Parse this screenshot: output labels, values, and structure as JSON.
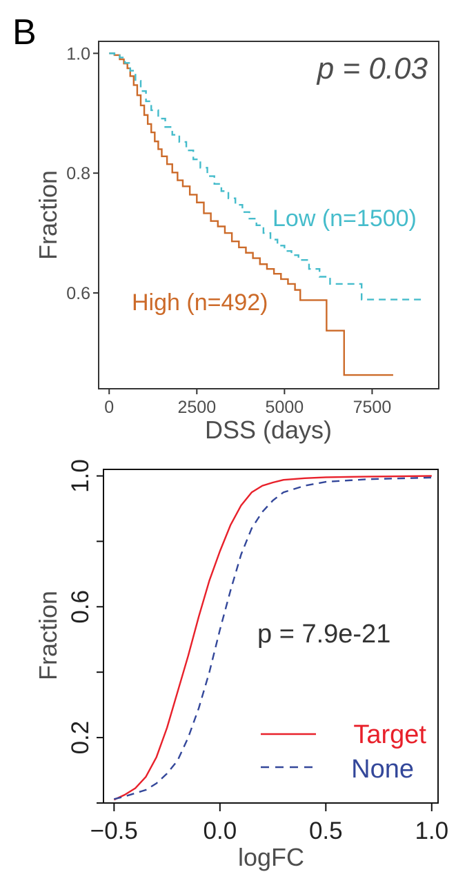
{
  "panel_label": "B",
  "chart_data": [
    {
      "type": "line",
      "title": "",
      "xlabel": "DSS (days)",
      "ylabel": "Fraction",
      "xlim": [
        -300,
        9400
      ],
      "ylim": [
        0.44,
        1.02
      ],
      "xticks": [
        0,
        2500,
        5000,
        7500
      ],
      "xtick_labels": [
        "0",
        "2500",
        "5000",
        "7500"
      ],
      "yticks": [
        0.6,
        0.8,
        1.0
      ],
      "ytick_labels": [
        "0.6",
        "0.8",
        "1.0"
      ],
      "grid": false,
      "annotation": "p = 0.03",
      "series": [
        {
          "name": "High (n=492)",
          "color": "#cc6a29",
          "dash": "solid",
          "x": [
            0,
            150,
            300,
            420,
            520,
            600,
            700,
            800,
            900,
            1000,
            1100,
            1200,
            1300,
            1400,
            1500,
            1650,
            1800,
            1950,
            2100,
            2300,
            2500,
            2700,
            2900,
            3100,
            3300,
            3500,
            3700,
            3900,
            4100,
            4300,
            4500,
            4700,
            4900,
            5100,
            5300,
            5450,
            6200,
            6700,
            8100
          ],
          "y": [
            1.0,
            0.997,
            0.99,
            0.983,
            0.975,
            0.962,
            0.947,
            0.93,
            0.913,
            0.897,
            0.882,
            0.868,
            0.853,
            0.84,
            0.828,
            0.815,
            0.801,
            0.788,
            0.778,
            0.764,
            0.751,
            0.733,
            0.72,
            0.711,
            0.7,
            0.686,
            0.676,
            0.667,
            0.658,
            0.648,
            0.64,
            0.632,
            0.623,
            0.615,
            0.605,
            0.588,
            0.537,
            0.463,
            0.463
          ]
        },
        {
          "name": "Low (n=1500)",
          "color": "#45bccb",
          "dash": "dashed",
          "x": [
            0,
            150,
            300,
            450,
            600,
            750,
            900,
            1050,
            1200,
            1400,
            1600,
            1800,
            2000,
            2200,
            2400,
            2600,
            2800,
            3000,
            3200,
            3400,
            3600,
            3800,
            4000,
            4200,
            4400,
            4600,
            4800,
            5000,
            5200,
            5400,
            5700,
            6000,
            6300,
            7200,
            8900
          ],
          "y": [
            1.0,
            0.998,
            0.993,
            0.984,
            0.971,
            0.954,
            0.937,
            0.92,
            0.905,
            0.891,
            0.877,
            0.864,
            0.852,
            0.838,
            0.823,
            0.809,
            0.795,
            0.782,
            0.77,
            0.758,
            0.747,
            0.735,
            0.724,
            0.713,
            0.7,
            0.689,
            0.679,
            0.67,
            0.663,
            0.655,
            0.64,
            0.627,
            0.615,
            0.589,
            0.589
          ]
        }
      ]
    },
    {
      "type": "line",
      "title": "",
      "xlabel": "logFC",
      "ylabel": "Fraction",
      "xlim": [
        -0.55,
        1.03
      ],
      "ylim": [
        0.0,
        1.02
      ],
      "xticks": [
        -0.5,
        0.0,
        0.5,
        1.0
      ],
      "xtick_labels": [
        "−0.5",
        "0.0",
        "0.5",
        "1.0"
      ],
      "yticks": [
        0.2,
        0.6,
        1.0
      ],
      "ytick_labels": [
        "0.2",
        "0.6",
        "1.0"
      ],
      "grid": false,
      "annotation": "p = 7.9e-21",
      "legend_position": "bottom-right",
      "series": [
        {
          "name": "Target",
          "color": "#e8202a",
          "dash": "solid",
          "x": [
            -0.5,
            -0.45,
            -0.4,
            -0.35,
            -0.3,
            -0.25,
            -0.2,
            -0.15,
            -0.1,
            -0.05,
            0.0,
            0.05,
            0.1,
            0.15,
            0.2,
            0.25,
            0.3,
            0.4,
            0.5,
            0.7,
            1.0
          ],
          "y": [
            0.01,
            0.025,
            0.045,
            0.08,
            0.14,
            0.23,
            0.34,
            0.45,
            0.57,
            0.68,
            0.77,
            0.85,
            0.91,
            0.95,
            0.97,
            0.98,
            0.988,
            0.993,
            0.996,
            0.998,
            1.0
          ]
        },
        {
          "name": "None",
          "color": "#33479a",
          "dash": "dashed",
          "x": [
            -0.5,
            -0.45,
            -0.4,
            -0.35,
            -0.3,
            -0.25,
            -0.2,
            -0.15,
            -0.1,
            -0.05,
            0.0,
            0.05,
            0.1,
            0.15,
            0.2,
            0.25,
            0.3,
            0.4,
            0.5,
            0.7,
            1.0
          ],
          "y": [
            0.012,
            0.02,
            0.03,
            0.04,
            0.06,
            0.09,
            0.13,
            0.2,
            0.29,
            0.4,
            0.53,
            0.65,
            0.76,
            0.84,
            0.89,
            0.925,
            0.95,
            0.97,
            0.982,
            0.99,
            0.995
          ]
        }
      ]
    }
  ]
}
